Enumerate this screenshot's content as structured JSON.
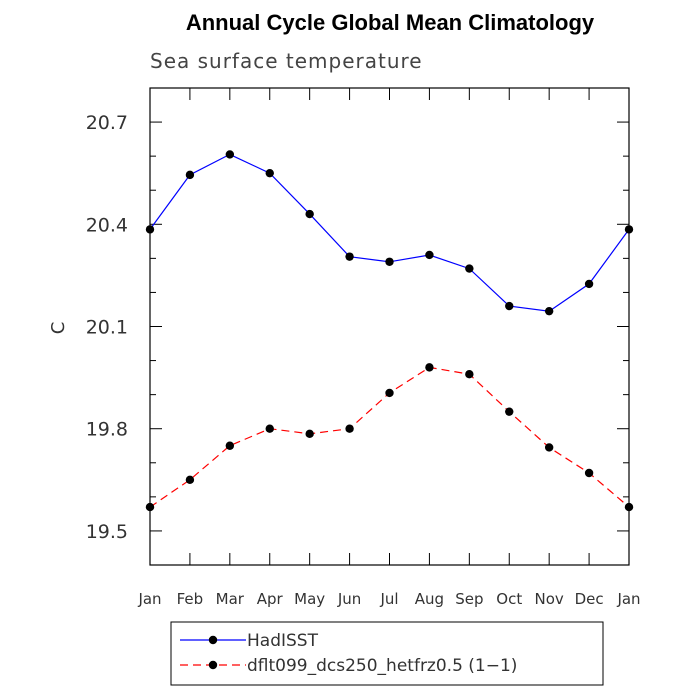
{
  "chart_data": {
    "type": "line",
    "title": "Annual Cycle Global Mean Climatology",
    "subtitle": "Sea surface temperature",
    "xlabel": "",
    "ylabel": "C",
    "categories": [
      "Jan",
      "Feb",
      "Mar",
      "Apr",
      "May",
      "Jun",
      "Jul",
      "Aug",
      "Sep",
      "Oct",
      "Nov",
      "Dec",
      "Jan"
    ],
    "ylim": [
      19.4,
      20.8
    ],
    "yticks": [
      19.5,
      19.8,
      20.1,
      20.4,
      20.7
    ],
    "ytick_labels": [
      "19.5",
      "19.8",
      "20.1",
      "20.4",
      "20.7"
    ],
    "grid": false,
    "legend_position": "bottom",
    "series": [
      {
        "name": "HadISST",
        "color": "#0000ff",
        "dash": "solid",
        "marker": "filled-circle",
        "values": [
          20.385,
          20.545,
          20.605,
          20.55,
          20.43,
          20.305,
          20.29,
          20.31,
          20.27,
          20.16,
          20.145,
          20.225,
          20.385
        ]
      },
      {
        "name": "dflt099_dcs250_hetfrz0.5 (1−1)",
        "color": "#ff0000",
        "dash": "dashed",
        "marker": "filled-circle",
        "values": [
          19.57,
          19.65,
          19.75,
          19.8,
          19.785,
          19.8,
          19.905,
          19.98,
          19.96,
          19.85,
          19.745,
          19.67,
          19.57
        ]
      }
    ]
  }
}
